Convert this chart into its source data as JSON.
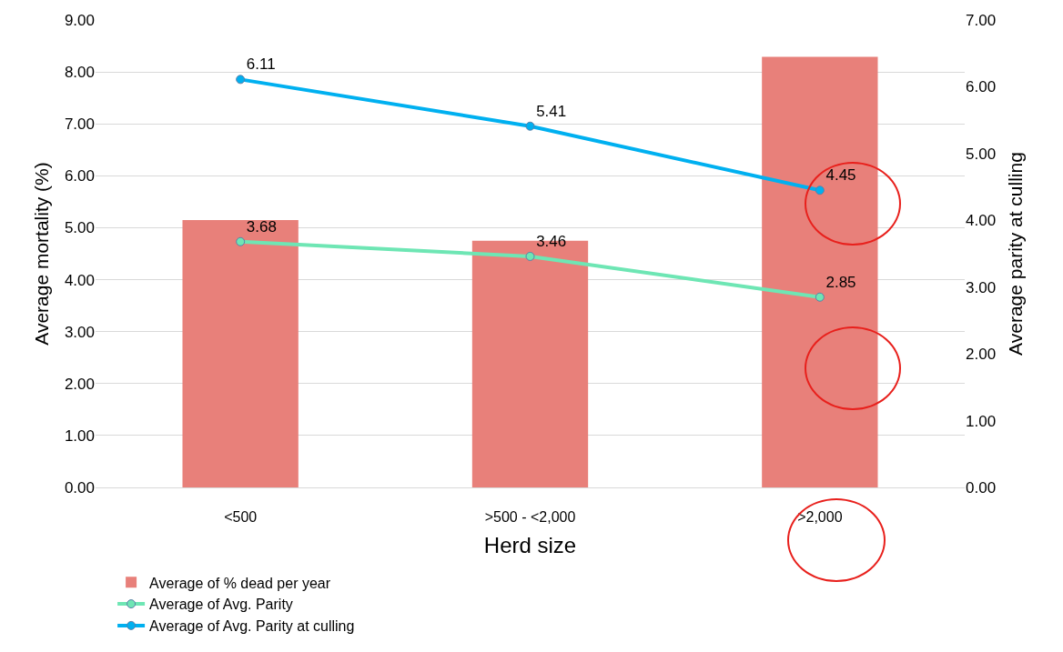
{
  "chart_data": {
    "type": "bar",
    "xlabel": "Herd size",
    "ylabel": "Average mortality (%)",
    "y2label": "Average parity at culling",
    "categories": [
      "<500",
      ">500 - <2,000",
      ">2,000"
    ],
    "series": [
      {
        "name": "Average of % dead per year",
        "color": "#e8807a",
        "values": [
          5.15,
          4.75,
          8.29
        ]
      },
      {
        "name": "Average of Avg. Parity",
        "type": "line",
        "axis": "y2",
        "color": "#6ee6b4",
        "marker": "circle",
        "data_labels": true,
        "values": [
          3.68,
          3.46,
          2.85
        ]
      },
      {
        "name": "Average of Avg. Parity at culling",
        "type": "line",
        "axis": "y2",
        "color": "#00b0f0",
        "marker": "circle",
        "data_labels": true,
        "values": [
          6.11,
          5.41,
          4.45
        ]
      }
    ],
    "ylim": [
      0,
      9
    ],
    "yticks": [
      {
        "value": 0,
        "label": "0.00"
      },
      {
        "value": 1,
        "label": "1.00"
      },
      {
        "value": 2,
        "label": "2.00"
      },
      {
        "value": 3,
        "label": "3.00"
      },
      {
        "value": 4,
        "label": "4.00"
      },
      {
        "value": 5,
        "label": "5.00"
      },
      {
        "value": 6,
        "label": "6.00"
      },
      {
        "value": 7,
        "label": "7.00"
      },
      {
        "value": 8,
        "label": "8.00"
      },
      {
        "value": 9,
        "label": "9.00"
      }
    ],
    "y2lim": [
      0,
      7
    ],
    "y2ticks": [
      {
        "value": 0,
        "label": "0.00"
      },
      {
        "value": 1,
        "label": "1.00"
      },
      {
        "value": 2,
        "label": "2.00"
      },
      {
        "value": 3,
        "label": "3.00"
      },
      {
        "value": 4,
        "label": "4.00"
      },
      {
        "value": 5,
        "label": "5.00"
      },
      {
        "value": 6,
        "label": "6.00"
      },
      {
        "value": 7,
        "label": "7.00"
      }
    ],
    "grid": "y",
    "legend": "bottom left"
  }
}
